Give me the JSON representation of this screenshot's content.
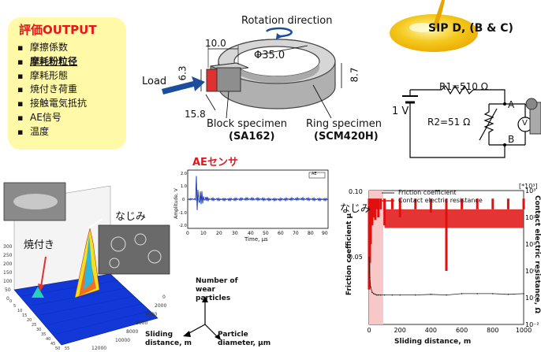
{
  "evaluation": {
    "title": "評価OUTPUT",
    "items": [
      {
        "label": "摩擦係数",
        "emphasis": false
      },
      {
        "label": "摩耗粉粒径",
        "emphasis": true
      },
      {
        "label": "摩耗形態",
        "emphasis": false
      },
      {
        "label": "焼付き荷重",
        "emphasis": false
      },
      {
        "label": "接触電気抵抗",
        "emphasis": false
      },
      {
        "label": "AE信号",
        "emphasis": false
      },
      {
        "label": "温度",
        "emphasis": false
      }
    ]
  },
  "apparatus": {
    "rotation_label": "Rotation direction",
    "load_label": "Load",
    "dim_block_length": "10.0",
    "dim_ring_diameter": "Φ35.0",
    "dim_block_height": "6.3",
    "dim_ring_width": "8.7",
    "dim_block_width": "15.8",
    "block_label": "Block specimen",
    "block_material": "(SA162)",
    "ring_label": "Ring specimen",
    "ring_material": "(SCM420H)"
  },
  "sip": {
    "title": "SIP D, (B & C)"
  },
  "circuit": {
    "r1_label": "R1=510 Ω",
    "r2_label": "R2=51 Ω",
    "voltage": "1 V",
    "node_a": "A",
    "node_b": "B",
    "meter": "V"
  },
  "ae": {
    "title": "AEセンサ",
    "ylabel": "Amplitude, V",
    "xlabel": "Time, μs",
    "tag": "AE",
    "colors": {
      "signal": "#1030b0",
      "title": "#e8151b"
    }
  },
  "chart_data": {
    "type": "line",
    "x": [
      0,
      5,
      10,
      20,
      30,
      40,
      50,
      60,
      75,
      100,
      150,
      200,
      300,
      400,
      500,
      600,
      700,
      800,
      900,
      1000
    ],
    "series": [
      {
        "name": "Friction coefficient",
        "axis": "left",
        "values": [
          0.05,
          0.035,
          0.028,
          0.024,
          0.023,
          0.0225,
          0.022,
          0.022,
          0.022,
          0.022,
          0.022,
          0.022,
          0.022,
          0.0225,
          0.022,
          0.023,
          0.023,
          0.023,
          0.0225,
          0.023
        ]
      },
      {
        "name": "Contact electric resistance",
        "axis": "right",
        "values": [
          0.2,
          2,
          10,
          50,
          100,
          80,
          200,
          100,
          200,
          50,
          200,
          100,
          200,
          150,
          1,
          200,
          200,
          200,
          200,
          200
        ]
      }
    ],
    "xlabel": "Sliding distance, m",
    "ylabel_left": "Friction coefficient  μ",
    "ylabel_right": "Contact electric resistance,  Ω",
    "xlim": [
      0,
      1000
    ],
    "ylim_left": [
      0,
      0.1
    ],
    "ylim_right": [
      0.01,
      1000
    ],
    "right_scale": "log",
    "x_ticks": [
      "0",
      "200",
      "400",
      "600",
      "800",
      "1000"
    ],
    "left_ticks": [
      "0.10",
      "0.05"
    ],
    "right_ticks": [
      "10³",
      "10²",
      "10¹",
      "10⁰",
      "10⁻¹",
      "10⁻²"
    ],
    "right_unit": "[*10³]",
    "annotation": "なじみ",
    "legend": "top"
  },
  "plot3d": {
    "annotation_runin": "なじみ",
    "annotation_seizure": "焼付き",
    "z_ticks": [
      "300",
      "250",
      "200",
      "150",
      "100",
      "50",
      "0"
    ],
    "dist_ticks": [
      "0",
      "2000",
      "4000",
      "6000",
      "8000",
      "10000",
      "12000"
    ],
    "size_ticks": [
      "0",
      "5",
      "10",
      "15",
      "20",
      "25",
      "30",
      "35",
      "40",
      "45",
      "50",
      "55"
    ]
  },
  "axes_legend": {
    "up": "Number of wear particles",
    "left": "Sliding distance, m",
    "right": "Particle diameter, μm"
  }
}
